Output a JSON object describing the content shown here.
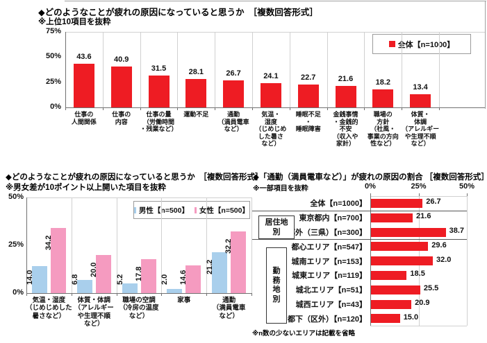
{
  "colors": {
    "red": "#ee1c23",
    "blue": "#a9cfec",
    "pink": "#f59bc0",
    "axis": "#707070",
    "grid": "#d0d0d0",
    "frame": "#a0a0a0",
    "text": "#111111"
  },
  "chart_data": [
    {
      "id": "fatigue-causes-total",
      "type": "bar",
      "title": "◆どのようなことが疲れの原因になっていると思うか　［複数回答形式］",
      "subtitle": "※上位10項目を抜粋",
      "legend": {
        "label": "全体【n=1000】"
      },
      "ylim": [
        0,
        75
      ],
      "yticks": [
        "75%",
        "50%",
        "25%",
        "0%"
      ],
      "grid": "category-separators",
      "legend_position": "top-right",
      "categories": [
        "仕事の\n人間関係",
        "仕事の\n内容",
        "仕事の量\n（労働時間\n・残業など）",
        "運動不足",
        "通勤\n（満員電車\nなど）",
        "気温・\n湿度\n（じめじめ\nした暑さ\nなど）",
        "睡眠不足\n・\n睡眠障害",
        "金銭事情\n・金銭的\n不安\n（収入や\n家計）",
        "職場の\n方針\n（社風・\n事業の方向\n性など）",
        "体質・\n体調\n（アレルギー\nや生理不順\nなど）"
      ],
      "values": [
        43.6,
        40.9,
        31.5,
        28.1,
        26.7,
        24.1,
        22.7,
        21.6,
        18.2,
        13.4
      ],
      "value_labels": [
        "43.6",
        "40.9",
        "31.5",
        "28.1",
        "26.7",
        "24.1",
        "22.7",
        "21.6",
        "18.2",
        "13.4"
      ]
    },
    {
      "id": "fatigue-causes-gender",
      "type": "bar",
      "title": "◆どのようなことが疲れの原因になっていると思うか　［複数回答形式］",
      "subtitle": "※男女差が10ポイント以上開いた項目を抜粋",
      "ylim": [
        0,
        50
      ],
      "yticks": [
        "50%",
        "25%",
        "0%"
      ],
      "legend_position": "top-right",
      "categories": [
        "気温・湿度\n（じめじめした\n暑さなど）",
        "体質・体調\n（アレルギー\nや生理不順\nなど）",
        "職場の空調\n（冷房の温度\nなど）",
        "家事",
        "通勤\n（満員電車\nなど）"
      ],
      "series": [
        {
          "name": "男性【n=500】",
          "color_key": "blue",
          "values": [
            14.0,
            6.8,
            5.2,
            2.0,
            21.2
          ],
          "value_labels": [
            "14.0",
            "6.8",
            "5.2",
            "2.0",
            "21.2"
          ]
        },
        {
          "name": "女性【n=500】",
          "color_key": "pink",
          "values": [
            34.2,
            20.0,
            17.8,
            14.6,
            32.2
          ],
          "value_labels": [
            "34.2",
            "20.0",
            "17.8",
            "14.6",
            "32.2"
          ]
        }
      ]
    },
    {
      "id": "commute-cause-by-area",
      "type": "bar-horizontal",
      "title": "◆「通勤（満員電車など）」が疲れの原因の割合 ［複数回答形式］",
      "subtitle": "※一部項目を抜粋",
      "footnote": "※n数の少ないエリアは記載を省略",
      "xlim": [
        0,
        50
      ],
      "xticks": [
        "0%",
        "25%",
        "50%"
      ],
      "groups": [
        {
          "label": "",
          "rows": [
            {
              "label": "全体【n=1000】",
              "value": 26.7,
              "value_label": "26.7"
            }
          ]
        },
        {
          "label": "居住地別",
          "rows": [
            {
              "label": "東京都内【n=700】",
              "value": 21.6,
              "value_label": "21.6"
            },
            {
              "label": "都外（三県）【n=300】",
              "value": 38.7,
              "value_label": "38.7"
            }
          ]
        },
        {
          "label": "勤務地別",
          "rows": [
            {
              "label": "都心エリア【n=547】",
              "value": 29.6,
              "value_label": "29.6"
            },
            {
              "label": "城南エリア【n=153】",
              "value": 32.0,
              "value_label": "32.0"
            },
            {
              "label": "城東エリア【n=119】",
              "value": 18.5,
              "value_label": "18.5"
            },
            {
              "label": "城北エリア【n=51】",
              "value": 25.5,
              "value_label": "25.5"
            },
            {
              "label": "城西エリア【n=43】",
              "value": 20.9,
              "value_label": "20.9"
            },
            {
              "label": "都下（区外）【n=120】",
              "value": 15.0,
              "value_label": "15.0"
            }
          ]
        }
      ]
    }
  ]
}
